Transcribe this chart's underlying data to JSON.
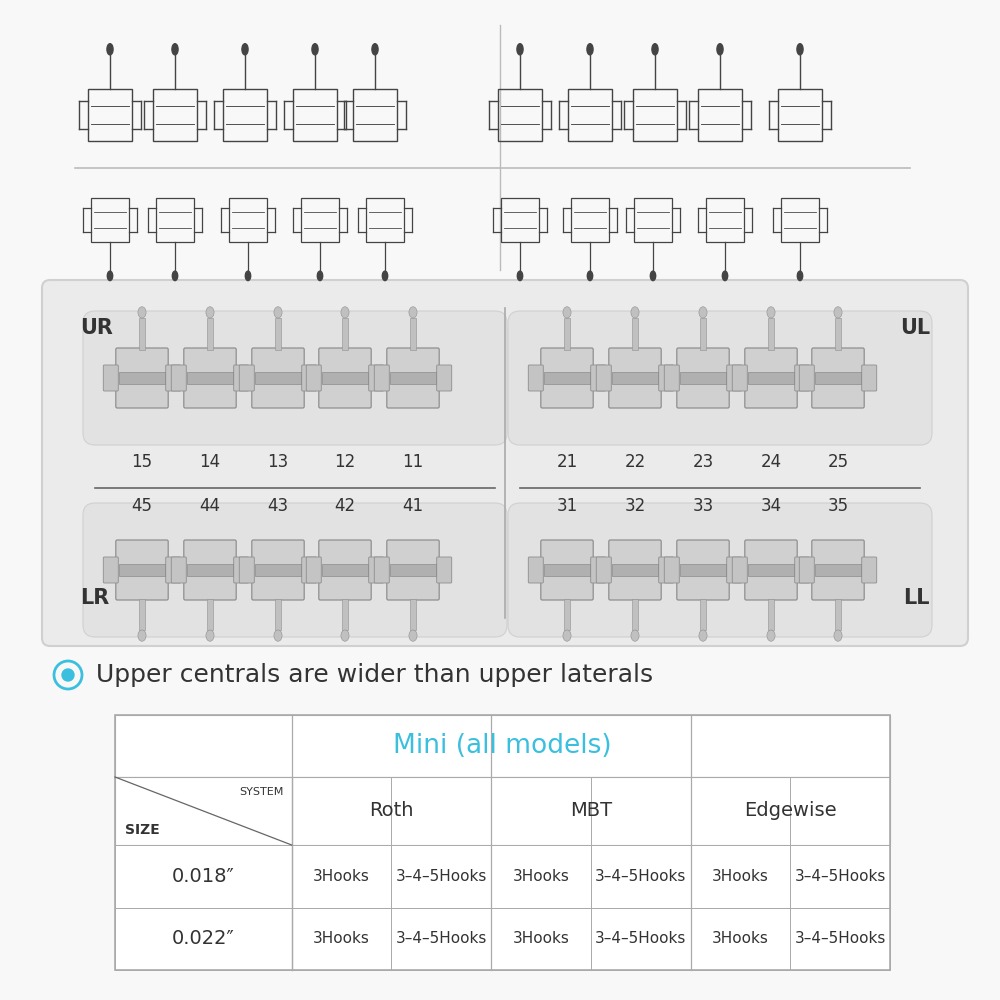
{
  "background_color": "#f8f8f8",
  "panel_bg": "#ebebeb",
  "panel_border": "#d0d0d0",
  "ur_label": "UR",
  "ul_label": "UL",
  "lr_label": "LR",
  "ll_label": "LL",
  "upper_right_nums": [
    "15",
    "14",
    "13",
    "12",
    "11"
  ],
  "upper_left_nums": [
    "21",
    "22",
    "23",
    "24",
    "25"
  ],
  "lower_right_nums": [
    "45",
    "44",
    "43",
    "42",
    "41"
  ],
  "lower_left_nums": [
    "31",
    "32",
    "33",
    "34",
    "35"
  ],
  "bullet_text": "Upper centrals are wider than upper laterals",
  "table_title": "Mini (all models)",
  "table_title_color": "#3bbfde",
  "size_label": "SIZE",
  "system_label": "SYSTEM",
  "row1_size": "0.018″",
  "row2_size": "0.022″",
  "cell_data": [
    [
      "3Hooks",
      "3–4–5Hooks",
      "3Hooks",
      "3–4–5Hooks",
      "3Hooks",
      "3–4–5Hooks"
    ],
    [
      "3Hooks",
      "3–4–5Hooks",
      "3Hooks",
      "3–4–5Hooks",
      "3Hooks",
      "3–4–5Hooks"
    ]
  ],
  "systems": [
    "Roth",
    "MBT",
    "Edgewise"
  ],
  "bullet_icon_color": "#3bbfde",
  "text_color": "#333333",
  "table_border": "#aaaaaa",
  "line_color": "#bbbbbb",
  "divider_color": "#666666"
}
